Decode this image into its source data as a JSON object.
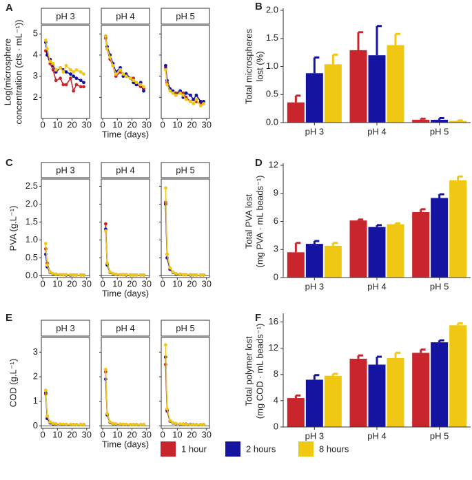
{
  "chart_data": [
    {
      "type": "line",
      "label": "A",
      "xlabel": "Time (days)",
      "ylabel": [
        "Log(microsphere",
        "concentration (cts · mL⁻¹))"
      ],
      "xlim": [
        -1,
        32
      ],
      "xticks": [
        0,
        10,
        20,
        30
      ],
      "ylim": [
        1,
        5.4
      ],
      "yticks": [
        2,
        3,
        4,
        5
      ],
      "facets": [
        {
          "title": "pH 3",
          "x": [
            2,
            3,
            5,
            7,
            9,
            12,
            14,
            16,
            19,
            21,
            23,
            26,
            28
          ],
          "series": [
            {
              "color": "#c8262c",
              "values": [
                4.2,
                4.0,
                3.6,
                3.3,
                2.8,
                2.9,
                2.6,
                2.6,
                2.9,
                2.3,
                2.6,
                2.5,
                2.5
              ]
            },
            {
              "color": "#1414a0",
              "values": [
                4.6,
                4.0,
                3.8,
                3.5,
                3.2,
                3.4,
                3.3,
                3.2,
                3.1,
                3.0,
                2.9,
                2.8,
                2.7
              ]
            },
            {
              "color": "#f0c814",
              "values": [
                4.7,
                4.3,
                3.7,
                3.6,
                3.3,
                3.4,
                3.2,
                3.5,
                3.3,
                3.2,
                3.3,
                3.2,
                3.1
              ]
            }
          ]
        },
        {
          "title": "pH 4",
          "x": [
            2,
            3,
            5,
            7,
            9,
            12,
            14,
            16,
            19,
            21,
            23,
            26,
            28
          ],
          "series": [
            {
              "color": "#c8262c",
              "values": [
                4.8,
                4.3,
                3.8,
                3.5,
                3.0,
                3.2,
                3.1,
                3.0,
                2.9,
                2.9,
                2.6,
                2.5,
                2.4
              ]
            },
            {
              "color": "#1414a0",
              "values": [
                4.9,
                4.4,
                4.0,
                3.6,
                3.2,
                3.4,
                3.0,
                3.1,
                2.9,
                2.7,
                2.6,
                2.7,
                2.3
              ]
            },
            {
              "color": "#f0c814",
              "values": [
                4.9,
                4.3,
                3.9,
                3.5,
                3.1,
                3.3,
                3.1,
                3.0,
                2.9,
                2.8,
                2.7,
                2.6,
                2.5
              ]
            }
          ]
        },
        {
          "title": "pH 5",
          "x": [
            2,
            3,
            5,
            7,
            9,
            12,
            14,
            16,
            19,
            21,
            23,
            26,
            28
          ],
          "series": [
            {
              "color": "#c8262c",
              "values": [
                3.4,
                2.7,
                2.4,
                2.2,
                2.2,
                2.3,
                2.2,
                2.0,
                1.8,
                1.9,
                1.8,
                1.7,
                1.8
              ]
            },
            {
              "color": "#1414a0",
              "values": [
                3.5,
                2.8,
                2.4,
                2.3,
                2.1,
                2.3,
                2.0,
                2.2,
                2.1,
                1.9,
                2.1,
                1.8,
                1.8
              ]
            },
            {
              "color": "#f0c814",
              "values": [
                3.3,
                2.6,
                2.3,
                2.2,
                2.1,
                2.2,
                2.1,
                1.9,
                1.8,
                1.7,
                1.9,
                1.6,
                1.7
              ]
            }
          ]
        }
      ]
    },
    {
      "type": "bar",
      "label": "B",
      "ylabel": [
        "Total microspheres",
        "lost (%)"
      ],
      "ylim": [
        0,
        2
      ],
      "yticks": [
        {
          "value": 0,
          "label": "0.0"
        },
        0.5,
        {
          "value": 1,
          "label": "1.0"
        },
        1.5,
        {
          "value": 2,
          "label": "2.0"
        }
      ],
      "categories": [
        "pH 3",
        "pH 4",
        "pH 5"
      ],
      "series": [
        {
          "color": "#c8262c",
          "values": [
            0.36,
            1.29,
            0.05
          ],
          "errors": [
            0.12,
            0.32,
            0.02
          ]
        },
        {
          "color": "#1414a0",
          "values": [
            0.88,
            1.2,
            0.05
          ],
          "errors": [
            0.28,
            0.52,
            0.03
          ]
        },
        {
          "color": "#f0c814",
          "values": [
            1.04,
            1.38,
            0.03
          ],
          "errors": [
            0.17,
            0.2,
            0.01
          ]
        }
      ]
    },
    {
      "type": "line",
      "label": "C",
      "xlabel": "Time (days)",
      "ylabel": [
        "PVA (g.L⁻¹)"
      ],
      "xlim": [
        -1,
        32
      ],
      "xticks": [
        0,
        10,
        20,
        30
      ],
      "ylim": [
        -0.05,
        2.7
      ],
      "yticks": [
        {
          "value": 0,
          "label": "0.0"
        },
        0.5,
        {
          "value": 1,
          "label": "1.0"
        },
        1.5,
        {
          "value": 2,
          "label": "2.0"
        },
        2.5
      ],
      "hline": 0,
      "facets": [
        {
          "title": "pH 3",
          "x": [
            2,
            3,
            5,
            7,
            9,
            12,
            14,
            16,
            19,
            21,
            23,
            26,
            28
          ],
          "series": [
            {
              "color": "#c8262c",
              "values": [
                0.75,
                0.35,
                0.1,
                0.05,
                0.04,
                0.03,
                0.03,
                0.03,
                0.02,
                0.02,
                0.02,
                0.02,
                0.02
              ]
            },
            {
              "color": "#1414a0",
              "values": [
                0.6,
                0.25,
                0.09,
                0.05,
                0.04,
                0.03,
                0.03,
                0.02,
                0.02,
                0.02,
                0.02,
                0.02,
                0.02
              ]
            },
            {
              "color": "#f0c814",
              "values": [
                0.9,
                0.3,
                0.1,
                0.06,
                0.04,
                0.03,
                0.03,
                0.03,
                0.03,
                0.02,
                0.02,
                0.02,
                0.02
              ]
            }
          ]
        },
        {
          "title": "pH 4",
          "x": [
            2,
            3,
            5,
            7,
            9,
            12,
            14,
            16,
            19,
            21,
            23,
            26,
            28
          ],
          "series": [
            {
              "color": "#c8262c",
              "values": [
                1.45,
                0.35,
                0.1,
                0.06,
                0.04,
                0.03,
                0.03,
                0.03,
                0.02,
                0.02,
                0.02,
                0.02,
                0.02
              ]
            },
            {
              "color": "#1414a0",
              "values": [
                1.3,
                0.3,
                0.09,
                0.05,
                0.04,
                0.03,
                0.03,
                0.02,
                0.02,
                0.02,
                0.02,
                0.02,
                0.02
              ]
            },
            {
              "color": "#f0c814",
              "values": [
                1.25,
                0.35,
                0.1,
                0.06,
                0.04,
                0.03,
                0.03,
                0.03,
                0.02,
                0.02,
                0.02,
                0.02,
                0.02
              ]
            }
          ]
        },
        {
          "title": "pH 5",
          "x": [
            2,
            3,
            5,
            7,
            9,
            12,
            14,
            16,
            19,
            21,
            23,
            26,
            28
          ],
          "series": [
            {
              "color": "#c8262c",
              "values": [
                2.05,
                0.6,
                0.2,
                0.1,
                0.06,
                0.04,
                0.03,
                0.03,
                0.03,
                0.02,
                0.02,
                0.02,
                0.02
              ]
            },
            {
              "color": "#1414a0",
              "values": [
                2.0,
                0.5,
                0.18,
                0.09,
                0.05,
                0.04,
                0.03,
                0.03,
                0.02,
                0.02,
                0.02,
                0.02,
                0.02
              ]
            },
            {
              "color": "#f0c814",
              "values": [
                2.45,
                0.6,
                0.22,
                0.1,
                0.06,
                0.04,
                0.03,
                0.03,
                0.03,
                0.02,
                0.02,
                0.02,
                0.02
              ]
            }
          ]
        }
      ]
    },
    {
      "type": "bar",
      "label": "D",
      "ylabel": [
        "Total PVA lost",
        "(mg PVA · mL beads⁻¹)"
      ],
      "ylim": [
        0,
        12
      ],
      "yticks": [
        0,
        3,
        6,
        9,
        12
      ],
      "categories": [
        "pH 3",
        "pH 4",
        "pH 5"
      ],
      "series": [
        {
          "color": "#c8262c",
          "values": [
            2.7,
            6.1,
            7.0
          ],
          "errors": [
            1.0,
            0.1,
            0.3
          ]
        },
        {
          "color": "#1414a0",
          "values": [
            3.6,
            5.4,
            8.5
          ],
          "errors": [
            0.3,
            0.2,
            0.4
          ]
        },
        {
          "color": "#f0c814",
          "values": [
            3.4,
            5.7,
            10.4
          ],
          "errors": [
            0.3,
            0.1,
            0.4
          ]
        }
      ]
    },
    {
      "type": "line",
      "label": "E",
      "xlabel": "Time (days)",
      "ylabel": [
        "COD (g.L⁻¹)"
      ],
      "xlim": [
        -1,
        32
      ],
      "xticks": [
        0,
        10,
        20,
        30
      ],
      "ylim": [
        -0.1,
        3.6
      ],
      "yticks": [
        0,
        1,
        2,
        3
      ],
      "hline": 0,
      "facets": [
        {
          "title": "pH 3",
          "x": [
            2,
            3,
            5,
            7,
            9,
            12,
            14,
            16,
            19,
            21,
            23,
            26,
            28
          ],
          "series": [
            {
              "color": "#c8262c",
              "values": [
                1.3,
                0.4,
                0.15,
                0.1,
                0.08,
                0.07,
                0.06,
                0.06,
                0.05,
                0.05,
                0.05,
                0.05,
                0.05
              ]
            },
            {
              "color": "#1414a0",
              "values": [
                1.35,
                0.3,
                0.12,
                0.08,
                0.07,
                0.06,
                0.06,
                0.05,
                0.05,
                0.05,
                0.05,
                0.05,
                0.05
              ]
            },
            {
              "color": "#f0c814",
              "values": [
                1.45,
                0.4,
                0.15,
                0.1,
                0.08,
                0.07,
                0.07,
                0.06,
                0.06,
                0.05,
                0.05,
                0.05,
                0.05
              ]
            }
          ]
        },
        {
          "title": "pH 4",
          "x": [
            2,
            3,
            5,
            7,
            9,
            12,
            14,
            16,
            19,
            21,
            23,
            26,
            28
          ],
          "series": [
            {
              "color": "#c8262c",
              "values": [
                2.2,
                0.5,
                0.15,
                0.1,
                0.08,
                0.07,
                0.06,
                0.06,
                0.05,
                0.05,
                0.05,
                0.05,
                0.05
              ]
            },
            {
              "color": "#1414a0",
              "values": [
                1.9,
                0.45,
                0.14,
                0.09,
                0.07,
                0.06,
                0.06,
                0.05,
                0.05,
                0.05,
                0.05,
                0.05,
                0.05
              ]
            },
            {
              "color": "#f0c814",
              "values": [
                2.3,
                0.5,
                0.16,
                0.1,
                0.08,
                0.07,
                0.06,
                0.06,
                0.05,
                0.05,
                0.05,
                0.05,
                0.05
              ]
            }
          ]
        },
        {
          "title": "pH 5",
          "x": [
            2,
            3,
            5,
            7,
            9,
            12,
            14,
            16,
            19,
            21,
            23,
            26,
            28
          ],
          "series": [
            {
              "color": "#c8262c",
              "values": [
                2.5,
                0.6,
                0.2,
                0.12,
                0.09,
                0.07,
                0.07,
                0.06,
                0.05,
                0.05,
                0.05,
                0.05,
                0.05
              ]
            },
            {
              "color": "#1414a0",
              "values": [
                2.8,
                0.65,
                0.2,
                0.12,
                0.09,
                0.07,
                0.07,
                0.07,
                0.06,
                0.05,
                0.05,
                0.05,
                0.05
              ]
            },
            {
              "color": "#f0c814",
              "values": [
                3.3,
                0.7,
                0.22,
                0.13,
                0.1,
                0.08,
                0.07,
                0.06,
                0.05,
                0.05,
                0.05,
                0.05,
                0.05
              ]
            }
          ]
        }
      ]
    },
    {
      "type": "bar",
      "label": "F",
      "ylabel": [
        "Total polymer lost",
        "(mg COD · mL beads⁻¹)"
      ],
      "ylim": [
        0,
        17
      ],
      "yticks": [
        0,
        4,
        8,
        12,
        16
      ],
      "categories": [
        "pH 3",
        "pH 4",
        "pH 5"
      ],
      "series": [
        {
          "color": "#c8262c",
          "values": [
            4.4,
            10.4,
            11.3
          ],
          "errors": [
            0.4,
            0.5,
            0.5
          ]
        },
        {
          "color": "#1414a0",
          "values": [
            7.2,
            9.5,
            12.9
          ],
          "errors": [
            0.7,
            1.2,
            0.3
          ]
        },
        {
          "color": "#f0c814",
          "values": [
            7.8,
            10.5,
            15.5
          ],
          "errors": [
            0.3,
            0.8,
            0.3
          ]
        }
      ]
    }
  ],
  "legend": [
    {
      "name": "1 hour",
      "color": "#c8262c"
    },
    {
      "name": "2 hours",
      "color": "#1414a0"
    },
    {
      "name": "8 hours",
      "color": "#f0c814"
    }
  ]
}
